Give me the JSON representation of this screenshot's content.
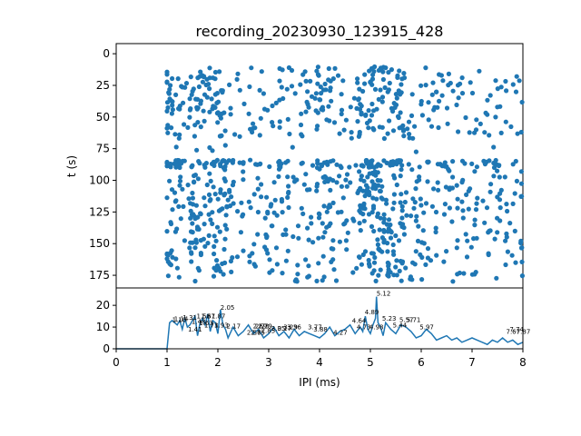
{
  "chart_data": [
    {
      "type": "scatter",
      "title": "recording_20230930_123915_428",
      "xlabel": "",
      "ylabel": "t (s)",
      "xlim": [
        0,
        8
      ],
      "ylim": [
        185,
        -8
      ],
      "y_inverted": true,
      "yticks": [
        0,
        25,
        50,
        75,
        100,
        125,
        150,
        175
      ],
      "color": "#1f77b4",
      "x_range_of_points": [
        1.0,
        8.0
      ],
      "y_range_of_points": [
        10,
        180
      ],
      "gap_in_t": [
        67,
        84
      ],
      "dense_x_columns": [
        1.1,
        1.6,
        2.0,
        4.1,
        4.9,
        5.1,
        5.5
      ],
      "point_count_estimate": 1100
    },
    {
      "type": "line",
      "title": "",
      "xlabel": "IPI (ms)",
      "ylabel": "",
      "xlim": [
        0,
        8
      ],
      "ylim": [
        0,
        28
      ],
      "xticks": [
        0,
        1,
        2,
        3,
        4,
        5,
        6,
        7,
        8
      ],
      "yticks": [
        0,
        10,
        20
      ],
      "color": "#1f77b4",
      "series": [
        {
          "x": [
            0,
            0.5,
            1.0,
            1.05,
            1.1,
            1.15,
            1.2,
            1.25,
            1.3,
            1.35,
            1.4,
            1.45,
            1.5,
            1.55,
            1.6,
            1.65,
            1.7,
            1.75,
            1.8,
            1.85,
            1.9,
            1.95,
            2.0,
            2.05,
            2.1,
            2.15,
            2.2,
            2.3,
            2.4,
            2.5,
            2.6,
            2.7,
            2.8,
            2.9,
            3.0,
            3.1,
            3.2,
            3.3,
            3.4,
            3.5,
            3.6,
            3.7,
            3.8,
            3.9,
            4.0,
            4.1,
            4.2,
            4.3,
            4.4,
            4.5,
            4.6,
            4.7,
            4.8,
            4.85,
            4.9,
            4.95,
            5.0,
            5.05,
            5.1,
            5.12,
            5.15,
            5.2,
            5.25,
            5.3,
            5.4,
            5.5,
            5.6,
            5.7,
            5.8,
            5.9,
            6.0,
            6.1,
            6.2,
            6.3,
            6.4,
            6.5,
            6.6,
            6.7,
            6.8,
            6.9,
            7.0,
            7.1,
            7.2,
            7.3,
            7.4,
            7.5,
            7.6,
            7.7,
            7.8,
            7.9,
            8.0
          ],
          "y": [
            0,
            0,
            0,
            12,
            13,
            12,
            11,
            13,
            9,
            14,
            10,
            11,
            13,
            15,
            6,
            12,
            14,
            11,
            16,
            8,
            13,
            12,
            7,
            18,
            11,
            9,
            5,
            10,
            6,
            8,
            11,
            7,
            9,
            5,
            7,
            10,
            6,
            8,
            5,
            9,
            6,
            8,
            7,
            6,
            5,
            7,
            10,
            6,
            8,
            9,
            11,
            7,
            10,
            8,
            15,
            9,
            7,
            11,
            14,
            24,
            12,
            10,
            6,
            12,
            9,
            7,
            11,
            10,
            8,
            5,
            6,
            9,
            7,
            4,
            5,
            6,
            4,
            5,
            3,
            4,
            5,
            4,
            3,
            2,
            4,
            3,
            5,
            3,
            4,
            2,
            3
          ]
        }
      ],
      "peak_labels": [
        {
          "x": 1.1,
          "y": 12,
          "text": "1.10"
        },
        {
          "x": 1.14,
          "y": 12.3,
          "text": "1.14"
        },
        {
          "x": 1.31,
          "y": 13,
          "text": "1.31"
        },
        {
          "x": 1.41,
          "y": 7.5,
          "text": "1.41"
        },
        {
          "x": 1.48,
          "y": 11,
          "text": "1.48"
        },
        {
          "x": 1.58,
          "y": 13.5,
          "text": "1.58"
        },
        {
          "x": 1.63,
          "y": 10.5,
          "text": "1.63"
        },
        {
          "x": 1.67,
          "y": 13.5,
          "text": "1.67"
        },
        {
          "x": 1.73,
          "y": 9.5,
          "text": "1.73"
        },
        {
          "x": 1.87,
          "y": 13.5,
          "text": "1.87"
        },
        {
          "x": 1.93,
          "y": 9.5,
          "text": "1.93"
        },
        {
          "x": 2.05,
          "y": 17.5,
          "text": "2.05"
        },
        {
          "x": 2.17,
          "y": 9,
          "text": "2.17"
        },
        {
          "x": 2.57,
          "y": 6,
          "text": "2.57"
        },
        {
          "x": 2.65,
          "y": 6,
          "text": "2.65"
        },
        {
          "x": 2.69,
          "y": 9,
          "text": "2.69"
        },
        {
          "x": 2.73,
          "y": 9,
          "text": "2.73"
        },
        {
          "x": 2.79,
          "y": 9,
          "text": "2.79"
        },
        {
          "x": 2.85,
          "y": 7,
          "text": "2.85"
        },
        {
          "x": 3.05,
          "y": 8,
          "text": "3.05"
        },
        {
          "x": 3.17,
          "y": 8,
          "text": "3.17"
        },
        {
          "x": 3.29,
          "y": 8.5,
          "text": "3.29"
        },
        {
          "x": 3.36,
          "y": 8.5,
          "text": "3.36"
        },
        {
          "x": 3.77,
          "y": 8.5,
          "text": "3.77"
        },
        {
          "x": 3.88,
          "y": 7.5,
          "text": "3.88"
        },
        {
          "x": 4.27,
          "y": 6,
          "text": "4.27"
        },
        {
          "x": 4.64,
          "y": 11.5,
          "text": "4.64"
        },
        {
          "x": 4.73,
          "y": 8.5,
          "text": "4.73"
        },
        {
          "x": 4.89,
          "y": 15.5,
          "text": "4.89"
        },
        {
          "x": 4.98,
          "y": 8.5,
          "text": "4.98"
        },
        {
          "x": 5.12,
          "y": 24,
          "text": "5.12"
        },
        {
          "x": 5.23,
          "y": 12.5,
          "text": "5.23"
        },
        {
          "x": 5.44,
          "y": 9.5,
          "text": "5.44"
        },
        {
          "x": 5.57,
          "y": 12,
          "text": "5.57"
        },
        {
          "x": 5.71,
          "y": 12,
          "text": "5.71"
        },
        {
          "x": 5.97,
          "y": 8.5,
          "text": "5.97"
        },
        {
          "x": 7.67,
          "y": 6.5,
          "text": "7.67"
        },
        {
          "x": 7.74,
          "y": 7.5,
          "text": "7.74"
        },
        {
          "x": 7.87,
          "y": 6.5,
          "text": "7.87"
        }
      ]
    }
  ]
}
